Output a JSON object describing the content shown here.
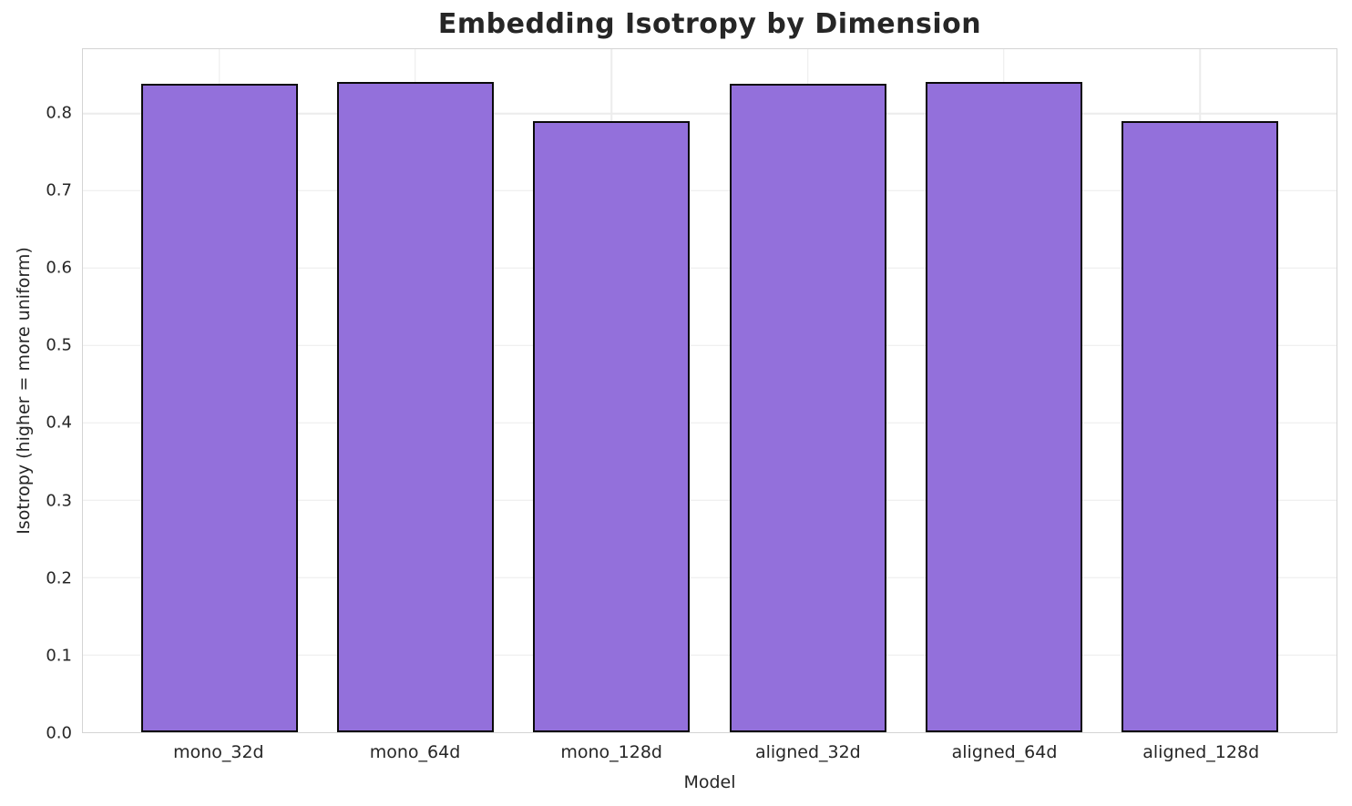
{
  "figure": {
    "background": "#ffffff",
    "text_color": "#262626"
  },
  "chart_data": {
    "type": "bar",
    "title": "Embedding Isotropy by Dimension",
    "xlabel": "Model",
    "ylabel": "Isotropy (higher = more uniform)",
    "categories": [
      "mono_32d",
      "mono_64d",
      "mono_128d",
      "aligned_32d",
      "aligned_64d",
      "aligned_128d"
    ],
    "values": [
      0.838,
      0.841,
      0.79,
      0.838,
      0.841,
      0.79
    ],
    "ylim": [
      0,
      0.883
    ],
    "yticks": [
      0.0,
      0.1,
      0.2,
      0.3,
      0.4,
      0.5,
      0.6,
      0.7,
      0.8
    ],
    "ytick_decimals": 1,
    "grid": true,
    "legend": false,
    "bar_color": "#9370DB",
    "bar_edge_color": "#0a0a0a",
    "grid_color": "#ececec",
    "frame_color": "#d4d4d4"
  }
}
